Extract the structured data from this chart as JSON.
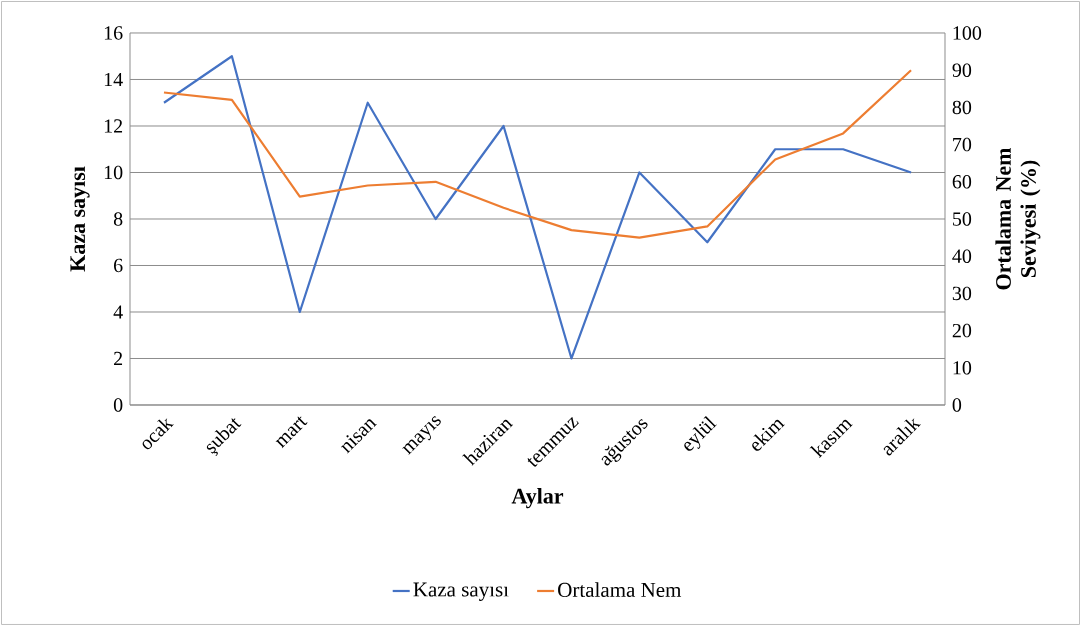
{
  "chart_data": {
    "type": "line",
    "xlabel": "Aylar",
    "ylabel": "Kaza sayısı",
    "y2label": "Ortalama Nem Seviyesi (%)",
    "categories": [
      "ocak",
      "şubat",
      "mart",
      "nisan",
      "mayıs",
      "haziran",
      "temmuz",
      "ağustos",
      "eylül",
      "ekim",
      "kasım",
      "aralık"
    ],
    "series": [
      {
        "name": "Kaza sayısı",
        "color": "#4472c4",
        "values": [
          13,
          15,
          4,
          13,
          8,
          12,
          2,
          10,
          7,
          11,
          11,
          10
        ]
      },
      {
        "name": "Ortalama Nem",
        "color": "#ed7d31",
        "axis": "y2",
        "values": [
          84,
          82,
          56,
          59,
          60,
          53,
          47,
          45,
          48,
          66,
          73,
          90
        ]
      }
    ],
    "ylim": [
      0,
      16
    ],
    "yticks": [
      0,
      2,
      4,
      6,
      8,
      10,
      12,
      14,
      16
    ],
    "y2lim": [
      0,
      100
    ],
    "y2ticks": [
      0,
      10,
      20,
      30,
      40,
      50,
      60,
      70,
      80,
      90,
      100
    ],
    "grid": "y",
    "legend": "bottom"
  }
}
